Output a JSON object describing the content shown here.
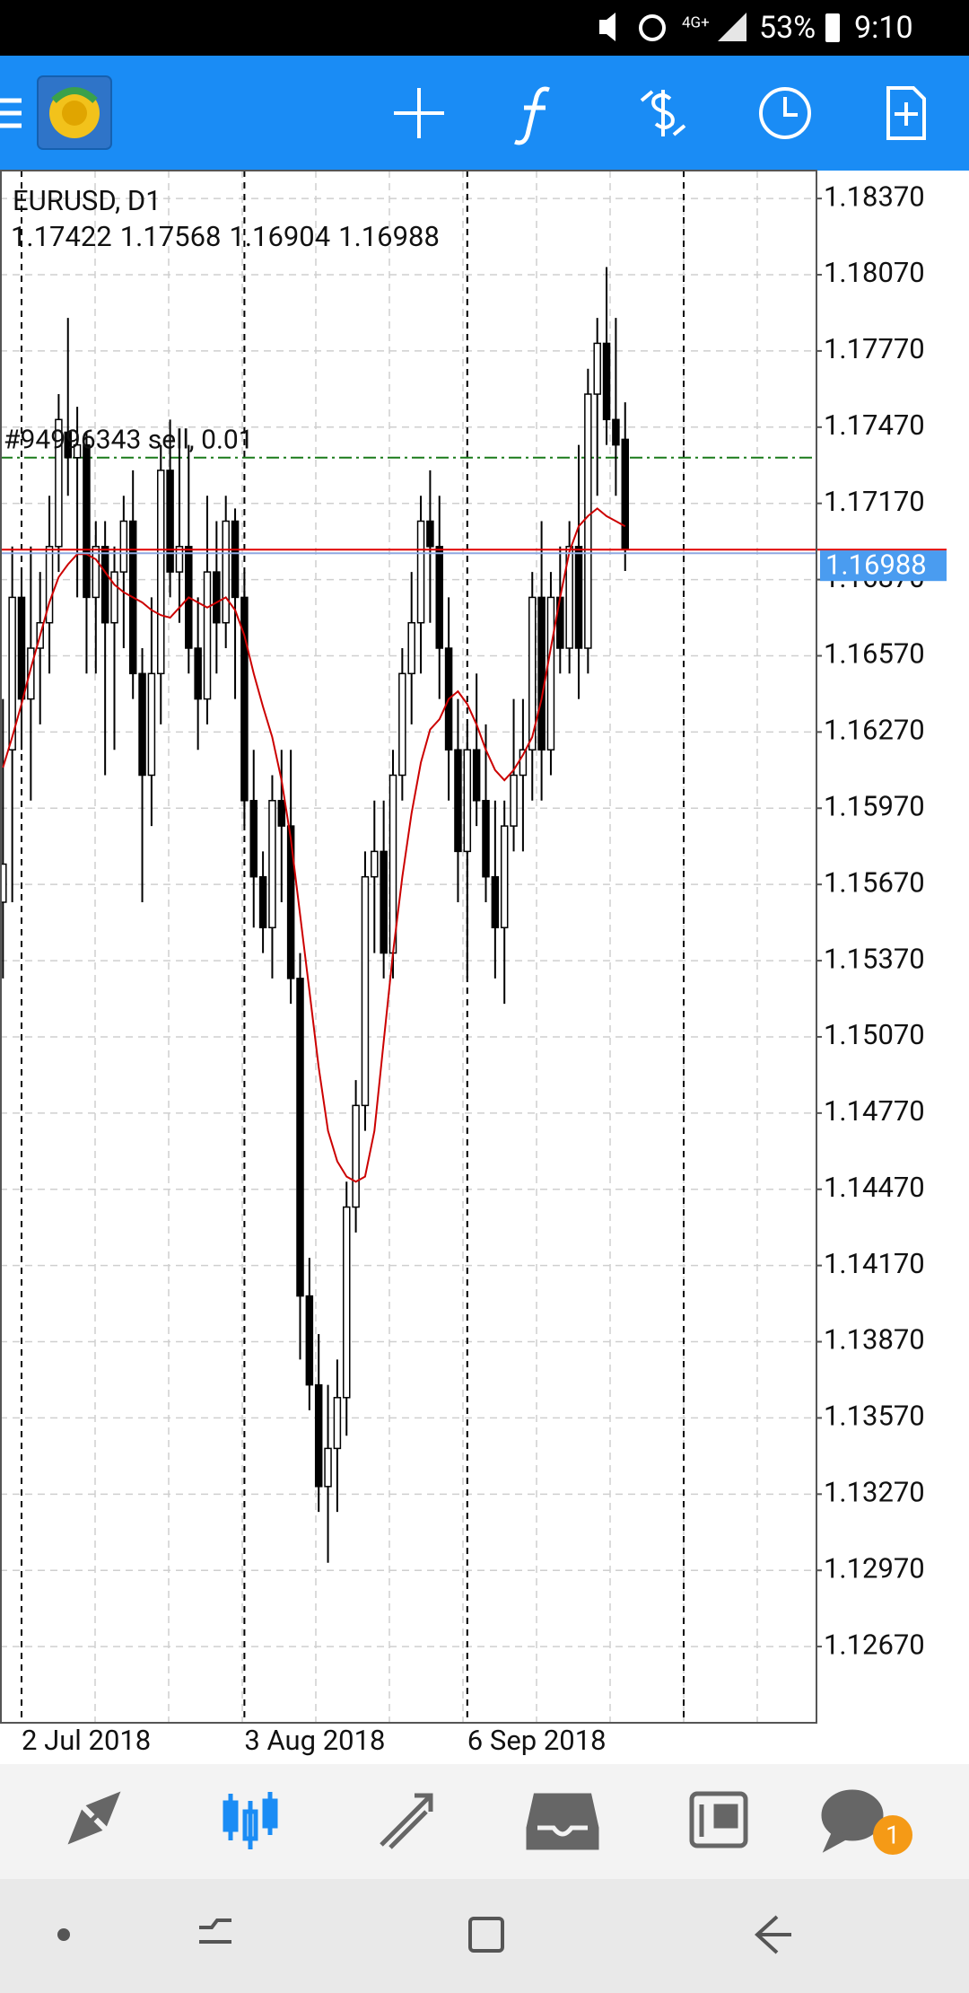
{
  "status_bar": {
    "network": "4G+",
    "battery": "53%",
    "time": "9:10"
  },
  "chart_data": {
    "type": "candlestick",
    "title": "EURUSD, D1",
    "categories": [
      null,
      null,
      "2 Jul 2018",
      null,
      null,
      null,
      null,
      null,
      null,
      null,
      null,
      null,
      null,
      null,
      null,
      null,
      null,
      null,
      null,
      null,
      null,
      null,
      null,
      null,
      null,
      null,
      "3 Aug 2018",
      null,
      null,
      null,
      null,
      null,
      null,
      null,
      null,
      null,
      null,
      null,
      null,
      null,
      null,
      null,
      null,
      null,
      null,
      null,
      null,
      null,
      null,
      null,
      "6 Sep 2018",
      null,
      null,
      null,
      null,
      null,
      null,
      null,
      null,
      null,
      null,
      null,
      null,
      null,
      null,
      null,
      null,
      null
    ],
    "open": [
      1.156,
      1.162,
      1.168,
      1.164,
      1.166,
      1.167,
      1.17,
      1.1745,
      1.1735,
      1.174,
      1.168,
      1.17,
      1.167,
      1.169,
      1.171,
      1.165,
      1.161,
      1.165,
      1.173,
      1.169,
      1.17,
      1.166,
      1.164,
      1.169,
      1.167,
      1.171,
      1.168,
      1.16,
      1.157,
      1.155,
      1.16,
      1.159,
      1.153,
      1.1405,
      1.137,
      1.133,
      1.1345,
      1.1365,
      1.144,
      1.148,
      1.157,
      1.158,
      1.154,
      1.161,
      1.165,
      1.167,
      1.171,
      1.17,
      1.166,
      1.162,
      1.158,
      1.162,
      1.16,
      1.157,
      1.155,
      1.159,
      1.161,
      1.162,
      1.168,
      1.162,
      1.168,
      1.166,
      1.17,
      1.166,
      1.176,
      1.178,
      1.175,
      1.17422
    ],
    "high": [
      1.164,
      1.17,
      1.169,
      1.17,
      1.169,
      1.172,
      1.176,
      1.179,
      1.1755,
      1.1745,
      1.171,
      1.171,
      1.17,
      1.172,
      1.173,
      1.166,
      1.168,
      1.174,
      1.175,
      1.174,
      1.174,
      1.168,
      1.172,
      1.171,
      1.172,
      1.1715,
      1.169,
      1.162,
      1.158,
      1.161,
      1.162,
      1.162,
      1.154,
      1.142,
      1.139,
      1.137,
      1.138,
      1.145,
      1.149,
      1.158,
      1.16,
      1.16,
      1.162,
      1.166,
      1.169,
      1.172,
      1.173,
      1.172,
      1.168,
      1.164,
      1.163,
      1.165,
      1.163,
      1.16,
      1.16,
      1.164,
      1.164,
      1.169,
      1.171,
      1.169,
      1.17,
      1.171,
      1.174,
      1.177,
      1.179,
      1.181,
      1.179,
      1.17568
    ],
    "low": [
      1.153,
      1.156,
      1.162,
      1.16,
      1.163,
      1.165,
      1.169,
      1.172,
      1.168,
      1.165,
      1.165,
      1.161,
      1.162,
      1.166,
      1.164,
      1.156,
      1.159,
      1.163,
      1.168,
      1.167,
      1.165,
      1.162,
      1.163,
      1.165,
      1.166,
      1.164,
      1.159,
      1.155,
      1.154,
      1.153,
      1.156,
      1.152,
      1.138,
      1.136,
      1.132,
      1.13,
      1.132,
      1.135,
      1.143,
      1.147,
      1.154,
      1.153,
      1.153,
      1.16,
      1.163,
      1.165,
      1.167,
      1.164,
      1.16,
      1.156,
      1.153,
      1.159,
      1.156,
      1.153,
      1.152,
      1.158,
      1.158,
      1.16,
      1.16,
      1.161,
      1.165,
      1.165,
      1.164,
      1.165,
      1.172,
      1.174,
      1.172,
      1.16904
    ],
    "close": [
      1.1575,
      1.168,
      1.164,
      1.166,
      1.167,
      1.17,
      1.175,
      1.1735,
      1.174,
      1.168,
      1.17,
      1.167,
      1.169,
      1.171,
      1.165,
      1.161,
      1.165,
      1.173,
      1.169,
      1.17,
      1.166,
      1.164,
      1.169,
      1.167,
      1.171,
      1.168,
      1.16,
      1.157,
      1.155,
      1.16,
      1.159,
      1.153,
      1.1405,
      1.137,
      1.133,
      1.1345,
      1.1365,
      1.144,
      1.148,
      1.157,
      1.158,
      1.154,
      1.161,
      1.165,
      1.167,
      1.171,
      1.17,
      1.166,
      1.162,
      1.158,
      1.162,
      1.16,
      1.157,
      1.155,
      1.159,
      1.161,
      1.162,
      1.168,
      1.162,
      1.168,
      1.166,
      1.17,
      1.166,
      1.176,
      1.178,
      1.175,
      1.174,
      1.16988
    ],
    "up_color": "#ffffff",
    "down_color": "#000000",
    "ma": {
      "color": "#cc0000",
      "values": [
        1.1613,
        1.1625,
        1.1638,
        1.1652,
        1.1665,
        1.1678,
        1.1688,
        1.1693,
        1.1697,
        1.1697,
        1.1695,
        1.169,
        1.1685,
        1.1682,
        1.168,
        1.1678,
        1.1675,
        1.1673,
        1.1672,
        1.1676,
        1.168,
        1.1678,
        1.1676,
        1.1678,
        1.168,
        1.1675,
        1.1665,
        1.165,
        1.1637,
        1.1625,
        1.1608,
        1.1585,
        1.1555,
        1.1525,
        1.1495,
        1.147,
        1.1458,
        1.1452,
        1.145,
        1.1452,
        1.147,
        1.1505,
        1.154,
        1.157,
        1.1595,
        1.1615,
        1.1628,
        1.1632,
        1.164,
        1.1643,
        1.1638,
        1.163,
        1.162,
        1.1612,
        1.1608,
        1.1612,
        1.1618,
        1.1625,
        1.164,
        1.166,
        1.168,
        1.1698,
        1.1708,
        1.1712,
        1.1715,
        1.1712,
        1.171,
        1.1708
      ]
    },
    "order": {
      "label": "#94996343 sell, 0.01",
      "price": 1.1735,
      "color": "#1a7a1a"
    },
    "bid_color": "#e00000",
    "ylim": [
      1.1237,
      1.1848
    ],
    "yticks": [
      {
        "value": 1.1837,
        "label": "1.18370"
      },
      {
        "value": 1.1807,
        "label": "1.18070"
      },
      {
        "value": 1.1777,
        "label": "1.17770"
      },
      {
        "value": 1.1747,
        "label": "1.17470"
      },
      {
        "value": 1.1717,
        "label": "1.17170"
      },
      {
        "value": 1.1687,
        "label": "1.16870"
      },
      {
        "value": 1.1657,
        "label": "1.16570"
      },
      {
        "value": 1.1627,
        "label": "1.16270"
      },
      {
        "value": 1.1597,
        "label": "1.15970"
      },
      {
        "value": 1.1567,
        "label": "1.15670"
      },
      {
        "value": 1.1537,
        "label": "1.15370"
      },
      {
        "value": 1.1507,
        "label": "1.15070"
      },
      {
        "value": 1.1477,
        "label": "1.14770"
      },
      {
        "value": 1.1447,
        "label": "1.14470"
      },
      {
        "value": 1.1417,
        "label": "1.14170"
      },
      {
        "value": 1.1387,
        "label": "1.13870"
      },
      {
        "value": 1.1357,
        "label": "1.13570"
      },
      {
        "value": 1.1327,
        "label": "1.13270"
      },
      {
        "value": 1.1297,
        "label": "1.12970"
      },
      {
        "value": 1.1267,
        "label": "1.12670"
      }
    ],
    "grid": true
  },
  "bottom_nav": {
    "badge": "1"
  }
}
